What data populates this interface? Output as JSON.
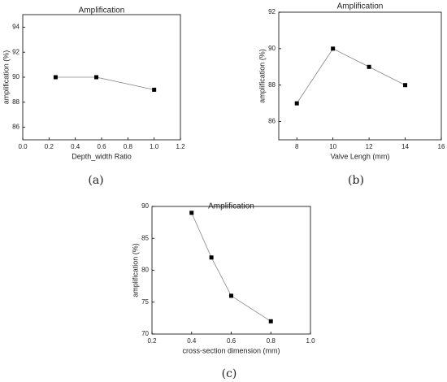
{
  "chart_data": [
    {
      "type": "line",
      "title": "Amplification",
      "caption": "(a)",
      "x_label": "Depth_width Ratio",
      "y_label": "amplification (%)",
      "x": [
        0.25,
        0.56,
        1.0
      ],
      "series": [
        {
          "name": "amplification",
          "color": "#000000",
          "values": [
            90,
            90,
            89
          ]
        }
      ],
      "xlim": [
        0,
        1.2
      ],
      "xticks": [
        {
          "value": 0,
          "label": "0.0"
        },
        0.2,
        0.4,
        0.6,
        0.8,
        {
          "value": 1,
          "label": "1.0"
        },
        1.2
      ],
      "ylim": [
        85,
        95
      ],
      "yticks": [
        86,
        88,
        90,
        92,
        94
      ]
    },
    {
      "type": "line",
      "title": "Amplification",
      "caption": "(b)",
      "x_label": "Valve Lengh (mm)",
      "y_label": "amplification (%)",
      "x": [
        8,
        10,
        12,
        14
      ],
      "series": [
        {
          "name": "amplification",
          "color": "#000000",
          "values": [
            87,
            90,
            89,
            88
          ]
        }
      ],
      "xlim": [
        7,
        16
      ],
      "xticks": [
        8,
        10,
        12,
        14,
        16
      ],
      "ylim": [
        85,
        92
      ],
      "yticks": [
        86,
        88,
        90,
        92
      ]
    },
    {
      "type": "line",
      "title": "Amplification",
      "caption": "(c)",
      "x_label": "cross-section dimension (mm)",
      "y_label": "amplification (%)",
      "x": [
        0.4,
        0.5,
        0.6,
        0.8
      ],
      "series": [
        {
          "name": "amplification",
          "color": "#000000",
          "values": [
            89,
            82,
            76,
            72
          ]
        }
      ],
      "xlim": [
        0.2,
        1.0
      ],
      "xticks": [
        0.2,
        0.4,
        0.6,
        0.8,
        {
          "value": 1,
          "label": "1.0"
        }
      ],
      "ylim": [
        70,
        90
      ],
      "yticks": [
        70,
        75,
        80,
        85,
        90
      ]
    }
  ]
}
